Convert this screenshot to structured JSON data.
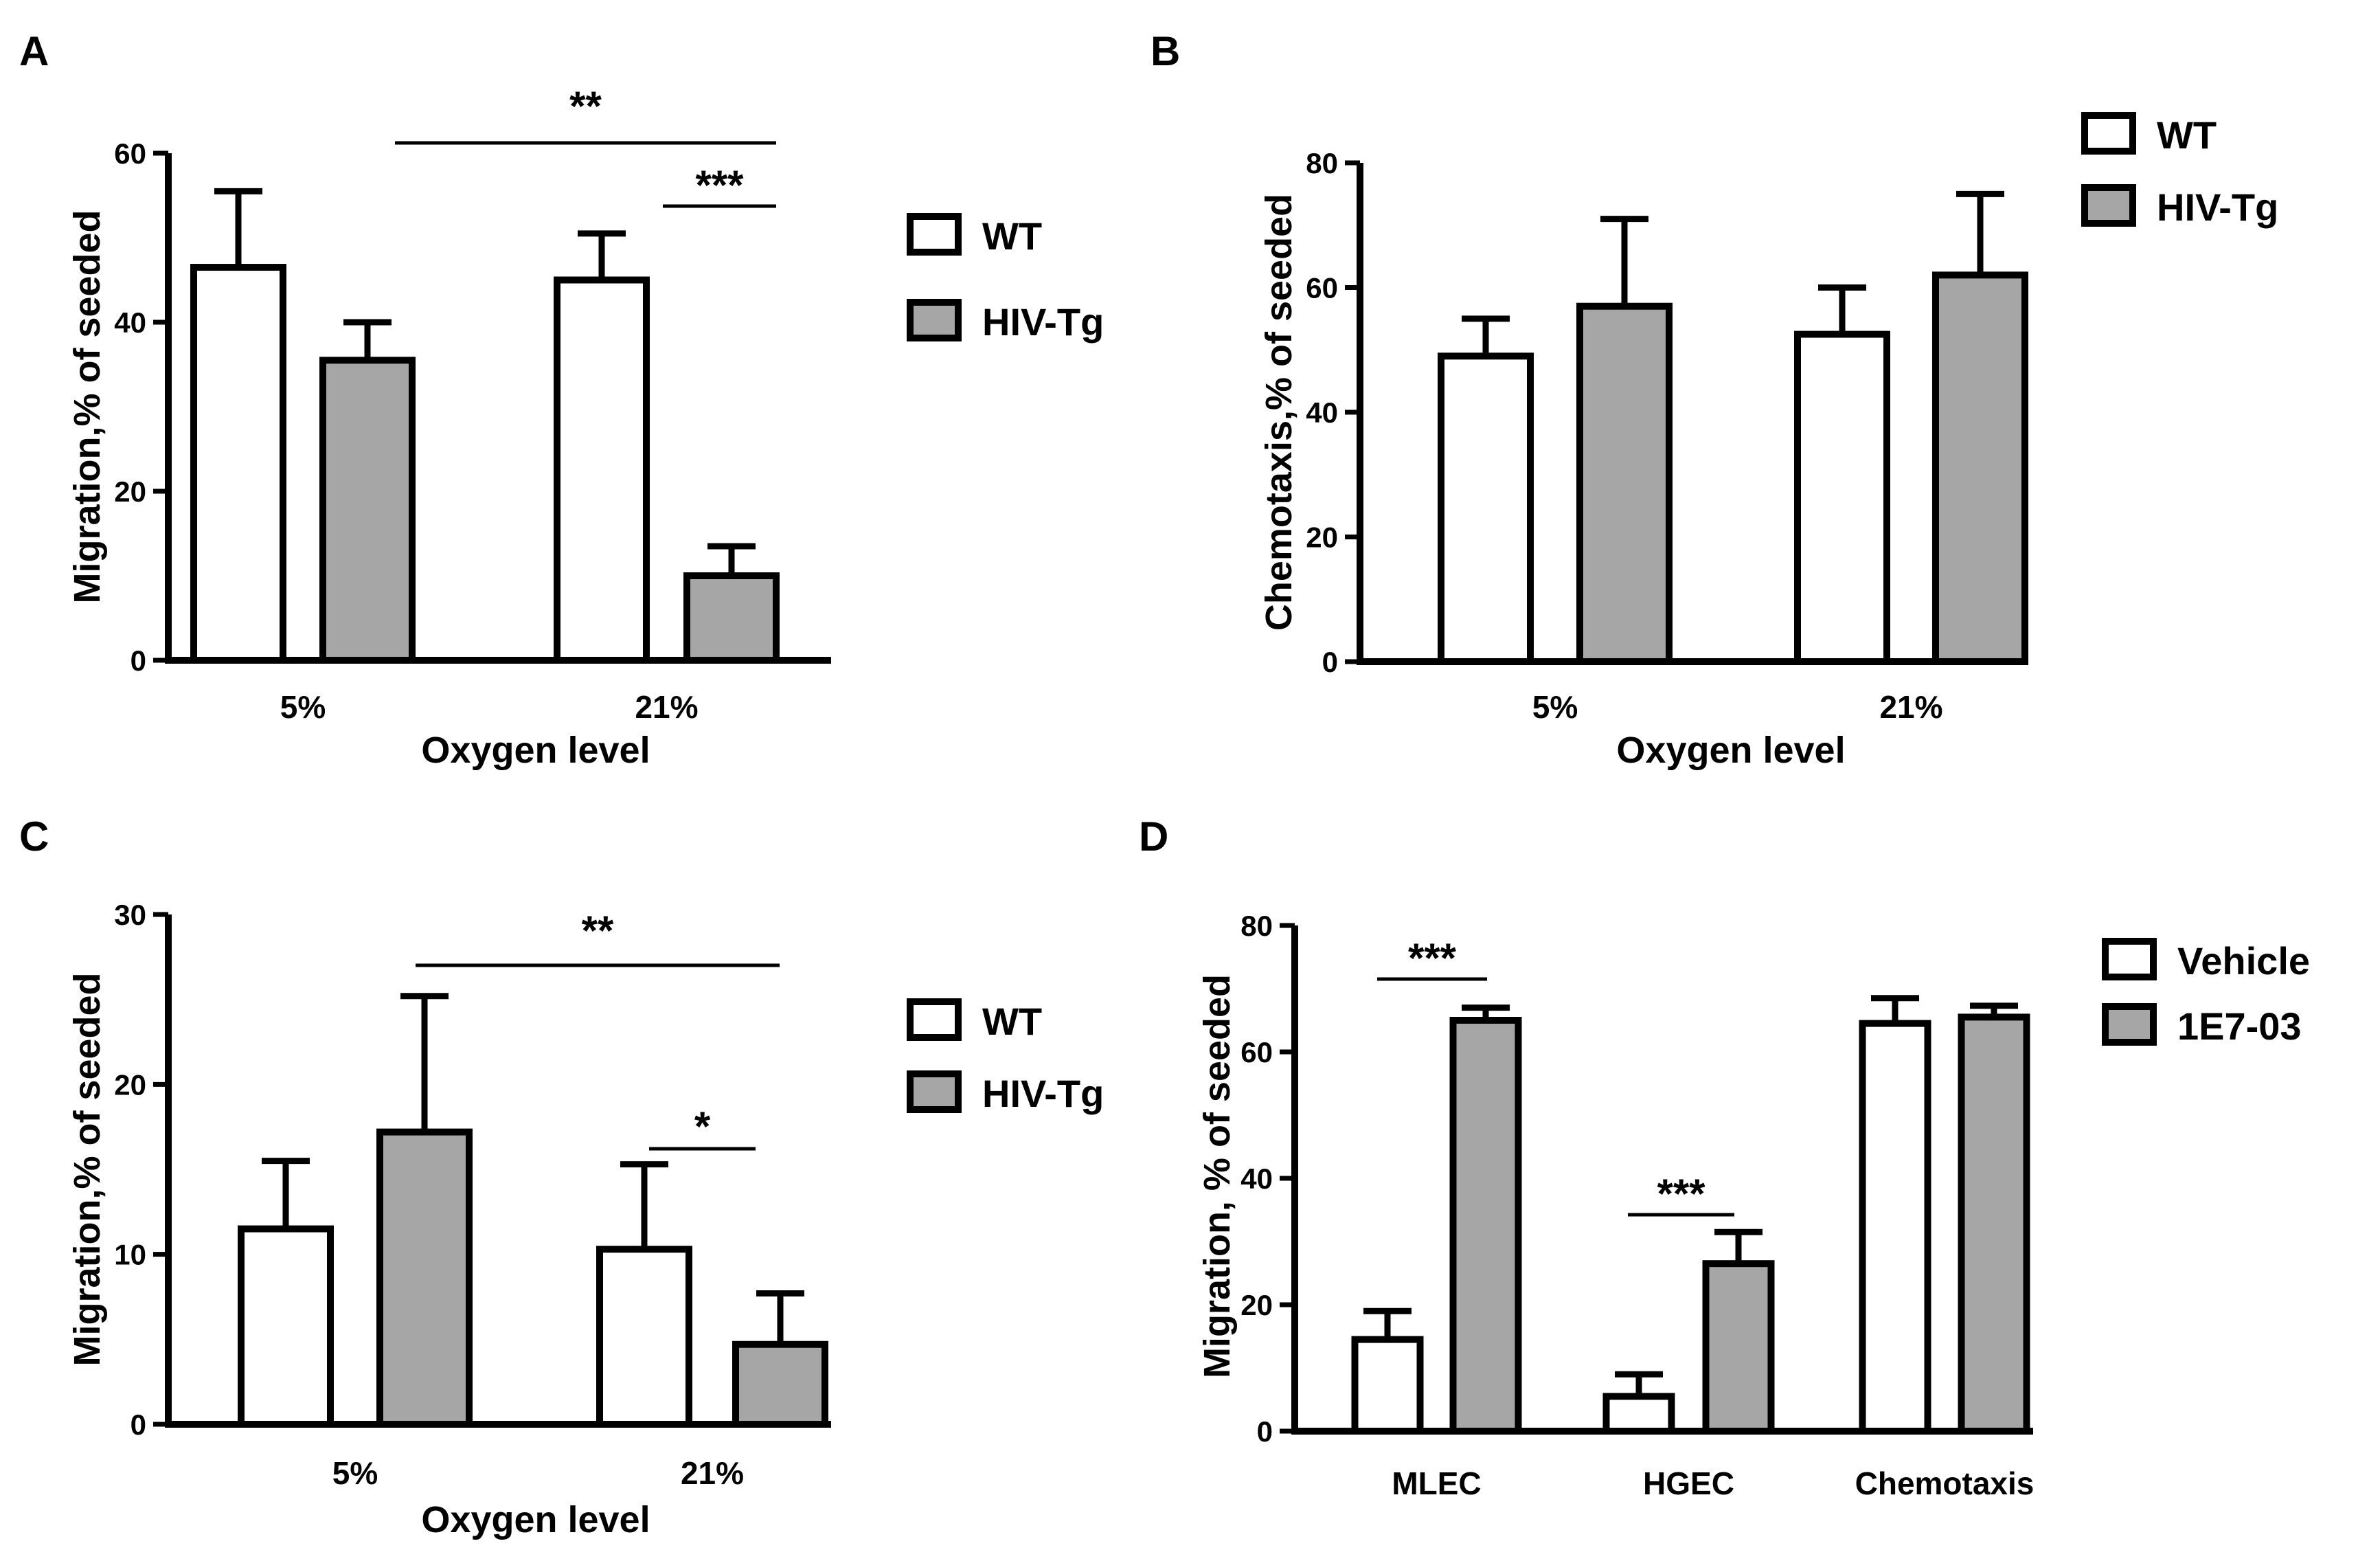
{
  "colors": {
    "wt_fill": "#ffffff",
    "tg_fill": "#a6a6a6",
    "stroke": "#000000"
  },
  "chart_data": [
    {
      "panel": "A",
      "type": "bar",
      "title": "",
      "xlabel": "Oxygen level",
      "ylabel": "Migration,% of seeded",
      "ylim": [
        0,
        60
      ],
      "yticks": [
        0,
        20,
        40,
        60
      ],
      "categories": [
        "5%",
        "21%"
      ],
      "series": [
        {
          "name": "WT",
          "values": [
            46.5,
            45
          ],
          "errors": [
            9,
            5.5
          ]
        },
        {
          "name": "HIV-Tg",
          "values": [
            35.5,
            10
          ],
          "errors": [
            4.5,
            3.5
          ]
        }
      ],
      "significance": [
        {
          "label": "**",
          "from": [
            0,
            1
          ],
          "to": [
            1,
            1
          ]
        },
        {
          "label": "***",
          "from": [
            1,
            0
          ],
          "to": [
            1,
            1
          ]
        }
      ],
      "legend": "top-right"
    },
    {
      "panel": "B",
      "type": "bar",
      "title": "",
      "xlabel": "Oxygen level",
      "ylabel": "Chemotaxis,% of seeded",
      "ylim": [
        0,
        80
      ],
      "yticks": [
        0,
        20,
        40,
        60,
        80
      ],
      "categories": [
        "5%",
        "21%"
      ],
      "series": [
        {
          "name": "WT",
          "values": [
            49,
            52.5
          ],
          "errors": [
            6,
            7.5
          ]
        },
        {
          "name": "HIV-Tg",
          "values": [
            57,
            62
          ],
          "errors": [
            14,
            13
          ]
        }
      ],
      "significance": [],
      "legend": "top-right"
    },
    {
      "panel": "C",
      "type": "bar",
      "title": "",
      "xlabel": "Oxygen level",
      "ylabel": "Migration,% of seeded",
      "ylim": [
        0,
        30
      ],
      "yticks": [
        0,
        10,
        20,
        30
      ],
      "categories": [
        "5%",
        "21%"
      ],
      "series": [
        {
          "name": "WT",
          "values": [
            11.5,
            10.3
          ],
          "errors": [
            4,
            5
          ]
        },
        {
          "name": "HIV-Tg",
          "values": [
            17.2,
            4.7
          ],
          "errors": [
            8,
            3
          ]
        }
      ],
      "significance": [
        {
          "label": "**",
          "from": [
            0,
            1
          ],
          "to": [
            1,
            1
          ]
        },
        {
          "label": "*",
          "from": [
            1,
            0
          ],
          "to": [
            1,
            1
          ]
        }
      ],
      "legend": "top-right"
    },
    {
      "panel": "D",
      "type": "bar",
      "title": "",
      "xlabel": "",
      "ylabel": "Migration, % of seeded",
      "ylim": [
        0,
        80
      ],
      "yticks": [
        0,
        20,
        40,
        60,
        80
      ],
      "categories": [
        "MLEC",
        "HGEC",
        "Chemotaxis"
      ],
      "series": [
        {
          "name": "Vehicle",
          "values": [
            14.5,
            5.5,
            64.5
          ],
          "errors": [
            4.5,
            3.5,
            4
          ]
        },
        {
          "name": "1E7-03",
          "values": [
            65,
            26.5,
            65.5
          ],
          "errors": [
            2,
            5,
            1.8
          ]
        }
      ],
      "significance": [
        {
          "label": "***",
          "from": [
            0,
            0
          ],
          "to": [
            0,
            1
          ]
        },
        {
          "label": "***",
          "from": [
            1,
            0
          ],
          "to": [
            1,
            1
          ]
        }
      ],
      "legend": "top-right"
    }
  ]
}
